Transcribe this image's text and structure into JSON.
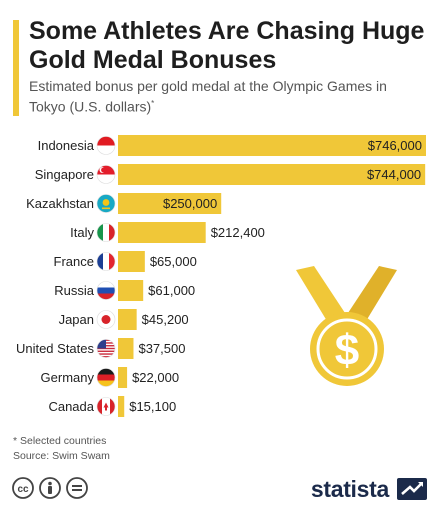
{
  "header": {
    "title": "Some Athletes Are Chasing Huge Gold Medal Bonuses",
    "subtitle": "Estimated bonus per gold medal at the Olympic Games in Tokyo (U.S. dollars)",
    "subtitle_mark": "*"
  },
  "colors": {
    "bar": "#f0c738",
    "accent": "#f0c738",
    "medal_gold": "#f0c738",
    "medal_dark": "#e0b12a",
    "brand": "#1b2a4a"
  },
  "chart_data": {
    "type": "bar",
    "orientation": "horizontal",
    "categories": [
      "Indonesia",
      "Singapore",
      "Kazakhstan",
      "Italy",
      "France",
      "Russia",
      "Japan",
      "United States",
      "Germany",
      "Canada"
    ],
    "values": [
      746000,
      744000,
      250000,
      212400,
      65000,
      61000,
      45200,
      37500,
      22000,
      15100
    ],
    "value_labels": [
      "$746,000",
      "$744,000",
      "$250,000",
      "$212,400",
      "$65,000",
      "$61,000",
      "$45,200",
      "$37,500",
      "$22,000",
      "$15,100"
    ],
    "flags": [
      "indonesia-flag-icon",
      "singapore-flag-icon",
      "kazakhstan-flag-icon",
      "italy-flag-icon",
      "france-flag-icon",
      "russia-flag-icon",
      "japan-flag-icon",
      "usa-flag-icon",
      "germany-flag-icon",
      "canada-flag-icon"
    ],
    "title": "Some Athletes Are Chasing Huge Gold Medal Bonuses",
    "xlabel": "",
    "ylabel": "",
    "xlim": [
      0,
      746000
    ],
    "grid": false,
    "legend": "none"
  },
  "footer": {
    "note": "* Selected countries",
    "source": "Source: Swim Swam",
    "brand": "statista",
    "licenses": [
      "cc-icon",
      "by-icon",
      "nd-icon"
    ]
  },
  "decoration": {
    "medal_symbol": "$"
  }
}
